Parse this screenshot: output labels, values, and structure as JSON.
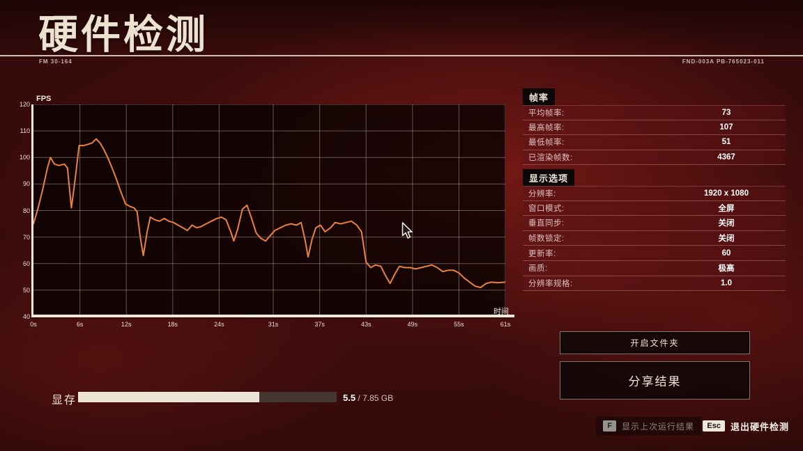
{
  "header": {
    "title": "硬件检测",
    "left_code": "FM 30-164",
    "right_code": "FND-003A PB-765023-011"
  },
  "chart_labels": {
    "y_axis": "FPS",
    "x_axis": "时间"
  },
  "chart_data": {
    "type": "line",
    "title": "FPS over time",
    "xlabel": "时间",
    "ylabel": "FPS",
    "xlim": [
      0,
      61
    ],
    "ylim": [
      40,
      120
    ],
    "grid": true,
    "line_color": "#e8823c",
    "x_ticks": [
      {
        "t": 0,
        "label": "0s"
      },
      {
        "t": 6,
        "label": "6s"
      },
      {
        "t": 12,
        "label": "12s"
      },
      {
        "t": 18,
        "label": "18s"
      },
      {
        "t": 24,
        "label": "24s"
      },
      {
        "t": 31,
        "label": "31s"
      },
      {
        "t": 37,
        "label": "37s"
      },
      {
        "t": 43,
        "label": "43s"
      },
      {
        "t": 49,
        "label": "49s"
      },
      {
        "t": 55,
        "label": "55s"
      },
      {
        "t": 61,
        "label": "61s"
      }
    ],
    "y_ticks": [
      120,
      110,
      100,
      90,
      80,
      70,
      60,
      50,
      40
    ],
    "series": [
      {
        "name": "FPS",
        "points": [
          [
            0,
            75
          ],
          [
            0.6,
            81
          ],
          [
            1.2,
            88
          ],
          [
            1.8,
            96
          ],
          [
            2.2,
            100
          ],
          [
            2.7,
            97.5
          ],
          [
            3.3,
            97
          ],
          [
            4,
            97.5
          ],
          [
            4.4,
            96
          ],
          [
            4.9,
            81
          ],
          [
            5.4,
            92
          ],
          [
            5.9,
            104.5
          ],
          [
            6.5,
            104.5
          ],
          [
            7.1,
            105
          ],
          [
            7.6,
            105.5
          ],
          [
            8.1,
            107
          ],
          [
            8.6,
            105.5
          ],
          [
            9.1,
            103
          ],
          [
            9.6,
            100
          ],
          [
            10.1,
            96.5
          ],
          [
            10.7,
            92
          ],
          [
            11.3,
            87
          ],
          [
            11.9,
            82.5
          ],
          [
            12.5,
            81.5
          ],
          [
            13,
            81
          ],
          [
            13.4,
            79.5
          ],
          [
            13.8,
            70
          ],
          [
            14.2,
            63
          ],
          [
            14.7,
            72
          ],
          [
            15.1,
            77.5
          ],
          [
            15.7,
            76.5
          ],
          [
            16.3,
            76
          ],
          [
            16.9,
            77
          ],
          [
            17.5,
            76
          ],
          [
            18.1,
            75.5
          ],
          [
            18.7,
            74.5
          ],
          [
            19.3,
            73.5
          ],
          [
            19.9,
            72.5
          ],
          [
            20.5,
            74.5
          ],
          [
            21.1,
            73.5
          ],
          [
            21.7,
            74
          ],
          [
            22.3,
            75
          ],
          [
            23,
            76
          ],
          [
            23.7,
            77
          ],
          [
            24.3,
            77.5
          ],
          [
            24.9,
            76.5
          ],
          [
            25.5,
            72
          ],
          [
            25.9,
            68.5
          ],
          [
            26.4,
            73
          ],
          [
            27,
            80.5
          ],
          [
            27.6,
            82
          ],
          [
            28.2,
            77
          ],
          [
            28.8,
            71.5
          ],
          [
            29.4,
            69.5
          ],
          [
            30,
            68.5
          ],
          [
            30.6,
            70.5
          ],
          [
            31.2,
            72.5
          ],
          [
            31.9,
            73.5
          ],
          [
            32.6,
            74.5
          ],
          [
            33.3,
            75
          ],
          [
            34,
            74.5
          ],
          [
            34.6,
            75.5
          ],
          [
            35.1,
            69
          ],
          [
            35.5,
            62.5
          ],
          [
            36,
            69
          ],
          [
            36.5,
            73.5
          ],
          [
            37.1,
            74.5
          ],
          [
            37.7,
            72
          ],
          [
            38.4,
            73.5
          ],
          [
            39,
            75.5
          ],
          [
            39.7,
            75
          ],
          [
            40.4,
            75.5
          ],
          [
            41.1,
            76
          ],
          [
            41.8,
            74.5
          ],
          [
            42.4,
            72
          ],
          [
            43,
            60.5
          ],
          [
            43.6,
            58.5
          ],
          [
            44.2,
            59.5
          ],
          [
            44.9,
            59
          ],
          [
            45.5,
            55.5
          ],
          [
            46.1,
            52.5
          ],
          [
            46.7,
            56
          ],
          [
            47.3,
            59
          ],
          [
            48,
            58.5
          ],
          [
            48.7,
            58.5
          ],
          [
            49.4,
            58
          ],
          [
            50.1,
            58.5
          ],
          [
            50.8,
            59
          ],
          [
            51.5,
            59.5
          ],
          [
            52.2,
            58.5
          ],
          [
            52.9,
            57
          ],
          [
            53.6,
            57.5
          ],
          [
            54.3,
            57.5
          ],
          [
            55,
            56.5
          ],
          [
            55.7,
            54.5
          ],
          [
            56.4,
            53
          ],
          [
            57.1,
            51.5
          ],
          [
            57.8,
            51
          ],
          [
            58.5,
            52.5
          ],
          [
            59.2,
            53
          ],
          [
            60,
            52.8
          ],
          [
            61,
            53
          ]
        ]
      }
    ]
  },
  "framerate_panel": {
    "title": "帧率",
    "rows": [
      {
        "label": "平均帧率:",
        "value": "73"
      },
      {
        "label": "最高帧率:",
        "value": "107"
      },
      {
        "label": "最低帧率:",
        "value": "51"
      },
      {
        "label": "已渲染帧数:",
        "value": "4367"
      }
    ]
  },
  "display_panel": {
    "title": "显示选项",
    "rows": [
      {
        "label": "分辨率:",
        "value": "1920 x 1080"
      },
      {
        "label": "窗口模式:",
        "value": "全屏"
      },
      {
        "label": "垂直同步:",
        "value": "关闭"
      },
      {
        "label": "帧数锁定:",
        "value": "关闭"
      },
      {
        "label": "更新率:",
        "value": "60"
      },
      {
        "label": "画质:",
        "value": "极高"
      },
      {
        "label": "分辨率规格:",
        "value": "1.0"
      }
    ]
  },
  "buttons": {
    "open_folder": "开启文件夹",
    "share_results": "分享结果"
  },
  "vram": {
    "label": "显存",
    "used": "5.5",
    "total_suffix": " / 7.85 GB",
    "percent": 70
  },
  "hints": {
    "f_key": "F",
    "f_label": "显示上次运行结果",
    "esc_key": "Esc",
    "esc_label": "退出硬件检测"
  }
}
